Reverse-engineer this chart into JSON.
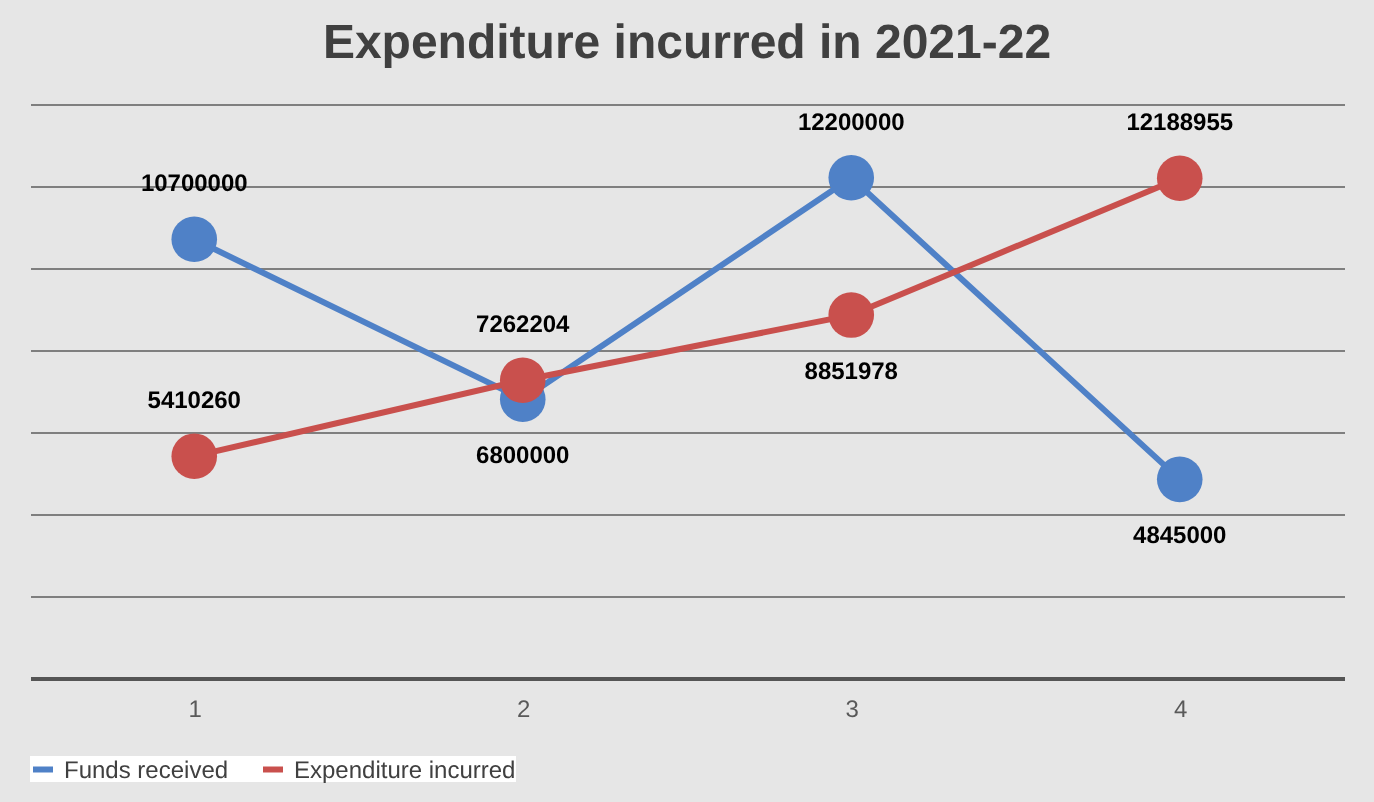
{
  "chart_data": {
    "type": "line",
    "title": "Expenditure incurred in 2021-22",
    "categories": [
      "1",
      "2",
      "3",
      "4"
    ],
    "series": [
      {
        "name": "Funds received",
        "color": "#4f81c7",
        "values": [
          10700000,
          6800000,
          12200000,
          4845000
        ]
      },
      {
        "name": "Expenditure incurred",
        "color": "#c9504d",
        "values": [
          5410260,
          7262204,
          8851978,
          12188955
        ]
      }
    ],
    "ylim": [
      0,
      14000000
    ],
    "yticks": [
      {
        "value": 0,
        "label": null
      },
      {
        "value": 2000000,
        "label": null
      },
      {
        "value": 4000000,
        "label": null
      },
      {
        "value": 6000000,
        "label": null
      },
      {
        "value": 8000000,
        "label": null
      },
      {
        "value": 10000000,
        "label": null
      },
      {
        "value": 12000000,
        "label": null
      },
      {
        "value": 14000000,
        "label": null
      }
    ],
    "tick_labels": "x",
    "grid": "y",
    "legend": "bottom",
    "marker": "circle",
    "line_style": "solid",
    "data_labels": true
  }
}
